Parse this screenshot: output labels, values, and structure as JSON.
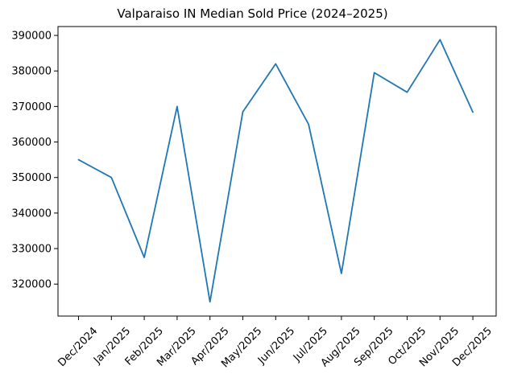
{
  "figure": {
    "background": "#ffffff",
    "frame_color": "#000000"
  },
  "chart_data": {
    "type": "line",
    "title": "Valparaiso IN Median Sold Price (2024–2025)",
    "categories": [
      "Dec/2024",
      "Jan/2025",
      "Feb/2025",
      "Mar/2025",
      "Apr/2025",
      "May/2025",
      "Jun/2025",
      "Jul/2025",
      "Aug/2025",
      "Sep/2025",
      "Oct/2025",
      "Nov/2025",
      "Dec/2025"
    ],
    "values": [
      355000,
      350000,
      327500,
      370000,
      315000,
      368500,
      382000,
      365000,
      323000,
      379500,
      374000,
      388800,
      368400
    ],
    "xlabel": "",
    "ylabel": "",
    "ylim": [
      311000,
      392500
    ],
    "yticks": [
      320000,
      330000,
      340000,
      350000,
      360000,
      370000,
      380000,
      390000
    ],
    "x_tick_rotation": 45,
    "grid": false,
    "legend": "none",
    "line_color": "#1f77b4"
  }
}
